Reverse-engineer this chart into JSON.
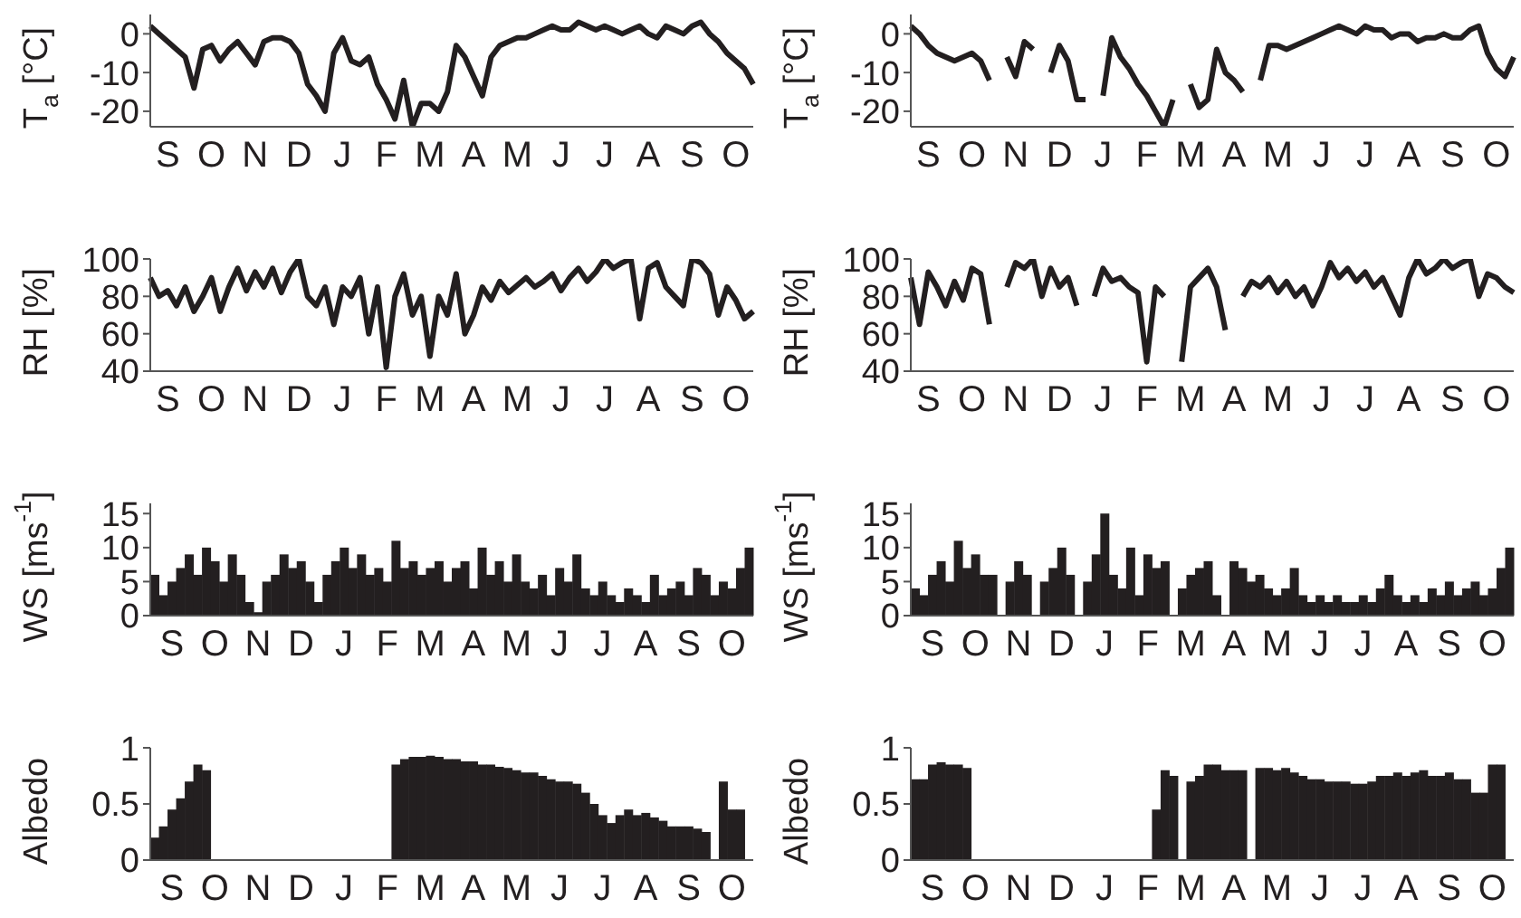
{
  "chart_data": [
    {
      "type": "line",
      "ylabel": "T$_{a}$ [°C]",
      "color": "#231f20",
      "ylim": [
        -24,
        5
      ],
      "yticks": [
        -20,
        -10,
        0
      ],
      "categories": [
        null,
        null,
        "S",
        null,
        null,
        null,
        null,
        "O",
        null,
        null,
        null,
        null,
        "N",
        null,
        null,
        null,
        null,
        "D",
        null,
        null,
        null,
        null,
        "J",
        null,
        null,
        null,
        null,
        "F",
        null,
        null,
        null,
        null,
        "M",
        null,
        null,
        null,
        null,
        "A",
        null,
        null,
        null,
        null,
        "M",
        null,
        null,
        null,
        null,
        "J",
        null,
        null,
        null,
        null,
        "J",
        null,
        null,
        null,
        null,
        "A",
        null,
        null,
        null,
        null,
        "S",
        null,
        null,
        null,
        null,
        "O",
        null,
        null
      ],
      "values": [
        2,
        0,
        -2,
        -4,
        -6,
        -14,
        -4,
        -3,
        -7,
        -4,
        -2,
        -5,
        -8,
        -2,
        -1,
        -1,
        -2,
        -5,
        -13,
        -16,
        -20,
        -5,
        -1,
        -7,
        -8,
        -6,
        -13,
        -17,
        -22,
        -12,
        -24,
        -18,
        -18,
        -20,
        -15,
        -3,
        -6,
        -11,
        -16,
        -6,
        -3,
        -2,
        -1,
        -1,
        0,
        1,
        2,
        1,
        1,
        3,
        2,
        1,
        2,
        1,
        0,
        1,
        2,
        0,
        -1,
        2,
        1,
        0,
        2,
        3,
        0,
        -2,
        -5,
        -7,
        -9,
        -13
      ]
    },
    {
      "type": "line",
      "ylabel": "T$_{a}$ [°C]",
      "color": "#231f20",
      "ylim": [
        -24,
        5
      ],
      "yticks": [
        -20,
        -10,
        0
      ],
      "categories": [
        null,
        null,
        "S",
        null,
        null,
        null,
        null,
        "O",
        null,
        null,
        null,
        null,
        "N",
        null,
        null,
        null,
        null,
        "D",
        null,
        null,
        null,
        null,
        "J",
        null,
        null,
        null,
        null,
        "F",
        null,
        null,
        null,
        null,
        "M",
        null,
        null,
        null,
        null,
        "A",
        null,
        null,
        null,
        null,
        "M",
        null,
        null,
        null,
        null,
        "J",
        null,
        null,
        null,
        null,
        "J",
        null,
        null,
        null,
        null,
        "A",
        null,
        null,
        null,
        null,
        "S",
        null,
        null,
        null,
        null,
        "O",
        null,
        null
      ],
      "values": [
        2,
        0,
        -3,
        -5,
        -6,
        -7,
        -6,
        -5,
        -7,
        -12,
        null,
        -6,
        -11,
        -2,
        -4,
        null,
        -10,
        -3,
        -7,
        -17,
        -17,
        null,
        -16,
        -1,
        -6,
        -9,
        -13,
        -16,
        -20,
        -24,
        -17,
        null,
        -13,
        -19,
        -17,
        -4,
        -10,
        -12,
        -15,
        null,
        -12,
        -3,
        -3,
        -4,
        -3,
        -2,
        -1,
        0,
        1,
        2,
        1,
        0,
        2,
        1,
        1,
        -1,
        0,
        0,
        -2,
        -1,
        -1,
        0,
        -1,
        -1,
        1,
        2,
        -5,
        -9,
        -11,
        -6
      ]
    },
    {
      "type": "line",
      "ylabel": "RH [%]",
      "color": "#231f20",
      "ylim": [
        40,
        100
      ],
      "yticks": [
        40,
        60,
        80,
        100
      ],
      "categories": [
        null,
        null,
        "S",
        null,
        null,
        null,
        null,
        "O",
        null,
        null,
        null,
        null,
        "N",
        null,
        null,
        null,
        null,
        "D",
        null,
        null,
        null,
        null,
        "J",
        null,
        null,
        null,
        null,
        "F",
        null,
        null,
        null,
        null,
        "M",
        null,
        null,
        null,
        null,
        "A",
        null,
        null,
        null,
        null,
        "M",
        null,
        null,
        null,
        null,
        "J",
        null,
        null,
        null,
        null,
        "J",
        null,
        null,
        null,
        null,
        "A",
        null,
        null,
        null,
        null,
        "S",
        null,
        null,
        null,
        null,
        "O",
        null,
        null
      ],
      "values": [
        90,
        80,
        83,
        75,
        85,
        72,
        80,
        90,
        72,
        85,
        95,
        83,
        93,
        85,
        95,
        82,
        93,
        100,
        80,
        75,
        85,
        65,
        85,
        80,
        90,
        60,
        85,
        42,
        80,
        92,
        70,
        80,
        48,
        80,
        70,
        92,
        60,
        70,
        85,
        78,
        88,
        82,
        86,
        90,
        85,
        88,
        92,
        83,
        90,
        95,
        88,
        93,
        100,
        95,
        98,
        100,
        68,
        95,
        98,
        85,
        80,
        75,
        100,
        98,
        92,
        70,
        85,
        78,
        68,
        72
      ]
    },
    {
      "type": "line",
      "ylabel": "RH [%]",
      "color": "#231f20",
      "ylim": [
        40,
        100
      ],
      "yticks": [
        40,
        60,
        80,
        100
      ],
      "categories": [
        null,
        null,
        "S",
        null,
        null,
        null,
        null,
        "O",
        null,
        null,
        null,
        null,
        "N",
        null,
        null,
        null,
        null,
        "D",
        null,
        null,
        null,
        null,
        "J",
        null,
        null,
        null,
        null,
        "F",
        null,
        null,
        null,
        null,
        "M",
        null,
        null,
        null,
        null,
        "A",
        null,
        null,
        null,
        null,
        "M",
        null,
        null,
        null,
        null,
        "J",
        null,
        null,
        null,
        null,
        "J",
        null,
        null,
        null,
        null,
        "A",
        null,
        null,
        null,
        null,
        "S",
        null,
        null,
        null,
        null,
        "O",
        null,
        null
      ],
      "values": [
        90,
        65,
        93,
        85,
        75,
        88,
        78,
        95,
        92,
        65,
        null,
        85,
        98,
        95,
        100,
        80,
        95,
        85,
        90,
        75,
        null,
        80,
        95,
        88,
        90,
        85,
        82,
        45,
        85,
        80,
        null,
        45,
        85,
        90,
        95,
        85,
        62,
        null,
        80,
        88,
        85,
        90,
        82,
        88,
        80,
        85,
        75,
        85,
        98,
        90,
        95,
        88,
        93,
        85,
        90,
        80,
        70,
        90,
        100,
        92,
        95,
        100,
        95,
        98,
        100,
        80,
        92,
        90,
        85,
        82
      ]
    },
    {
      "type": "bar",
      "ylabel": "WS [ms$^{-1}$]",
      "color": "#231f20",
      "ylim": [
        0,
        16.5
      ],
      "yticks": [
        0,
        5,
        10,
        15
      ],
      "categories": [
        null,
        null,
        "S",
        null,
        null,
        null,
        null,
        "O",
        null,
        null,
        null,
        null,
        "N",
        null,
        null,
        null,
        null,
        "D",
        null,
        null,
        null,
        null,
        "J",
        null,
        null,
        null,
        null,
        "F",
        null,
        null,
        null,
        null,
        "M",
        null,
        null,
        null,
        null,
        "A",
        null,
        null,
        null,
        null,
        "M",
        null,
        null,
        null,
        null,
        "J",
        null,
        null,
        null,
        null,
        "J",
        null,
        null,
        null,
        null,
        "A",
        null,
        null,
        null,
        null,
        "S",
        null,
        null,
        null,
        null,
        "O",
        null,
        null
      ],
      "values": [
        6,
        3,
        5,
        7,
        9,
        6,
        10,
        8,
        5,
        9,
        6,
        2,
        0.5,
        5,
        6,
        9,
        7,
        8,
        5,
        2,
        6,
        8,
        10,
        7,
        9,
        6,
        7,
        5,
        11,
        7,
        8,
        6,
        7,
        8,
        5,
        7,
        8,
        4,
        10,
        6,
        8,
        5,
        9,
        5,
        4,
        6,
        3,
        7,
        5,
        9,
        4,
        3,
        5,
        3,
        2,
        4,
        3,
        2,
        6,
        3,
        4,
        5,
        3,
        7,
        6,
        3,
        5,
        4,
        7,
        10
      ]
    },
    {
      "type": "bar",
      "ylabel": "WS [ms$^{-1}$]",
      "color": "#231f20",
      "ylim": [
        0,
        16.5
      ],
      "yticks": [
        0,
        5,
        10,
        15
      ],
      "categories": [
        null,
        null,
        "S",
        null,
        null,
        null,
        null,
        "O",
        null,
        null,
        null,
        null,
        "N",
        null,
        null,
        null,
        null,
        "D",
        null,
        null,
        null,
        null,
        "J",
        null,
        null,
        null,
        null,
        "F",
        null,
        null,
        null,
        null,
        "M",
        null,
        null,
        null,
        null,
        "A",
        null,
        null,
        null,
        null,
        "M",
        null,
        null,
        null,
        null,
        "J",
        null,
        null,
        null,
        null,
        "J",
        null,
        null,
        null,
        null,
        "A",
        null,
        null,
        null,
        null,
        "S",
        null,
        null,
        null,
        null,
        "O",
        null,
        null
      ],
      "values": [
        4,
        3,
        6,
        8,
        5,
        11,
        7,
        9,
        6,
        6,
        null,
        5,
        8,
        6,
        null,
        5,
        7,
        10,
        6,
        null,
        5,
        9,
        15,
        6,
        4,
        10,
        3,
        9,
        7,
        8,
        null,
        4,
        6,
        7,
        8,
        3,
        null,
        8,
        7,
        5,
        6,
        4,
        3,
        4,
        7,
        3,
        2,
        3,
        2,
        3,
        2,
        2,
        3,
        2,
        4,
        6,
        3,
        2,
        3,
        2,
        4,
        3,
        5,
        3,
        4,
        5,
        3,
        4,
        7,
        10
      ]
    },
    {
      "type": "bar",
      "ylabel": "Albedo",
      "color": "#231f20",
      "ylim": [
        0,
        1
      ],
      "yticks": [
        0,
        0.5,
        1
      ],
      "categories": [
        null,
        null,
        "S",
        null,
        null,
        null,
        null,
        "O",
        null,
        null,
        null,
        null,
        "N",
        null,
        null,
        null,
        null,
        "D",
        null,
        null,
        null,
        null,
        "J",
        null,
        null,
        null,
        null,
        "F",
        null,
        null,
        null,
        null,
        "M",
        null,
        null,
        null,
        null,
        "A",
        null,
        null,
        null,
        null,
        "M",
        null,
        null,
        null,
        null,
        "J",
        null,
        null,
        null,
        null,
        "J",
        null,
        null,
        null,
        null,
        "A",
        null,
        null,
        null,
        null,
        "S",
        null,
        null,
        null,
        null,
        "O",
        null,
        null
      ],
      "values": [
        0.2,
        0.3,
        0.45,
        0.55,
        0.7,
        0.85,
        0.8,
        null,
        null,
        null,
        null,
        null,
        null,
        null,
        null,
        null,
        null,
        null,
        null,
        null,
        null,
        null,
        null,
        null,
        null,
        null,
        null,
        null,
        0.85,
        0.9,
        0.92,
        0.92,
        0.93,
        0.92,
        0.9,
        0.9,
        0.88,
        0.88,
        0.85,
        0.85,
        0.83,
        0.82,
        0.8,
        0.78,
        0.78,
        0.75,
        0.72,
        0.7,
        0.7,
        0.68,
        0.6,
        0.5,
        0.4,
        0.33,
        0.4,
        0.45,
        0.4,
        0.42,
        0.38,
        0.35,
        0.3,
        0.3,
        0.3,
        0.28,
        0.25,
        null,
        0.7,
        0.45,
        0.45,
        null
      ]
    },
    {
      "type": "bar",
      "ylabel": "Albedo",
      "color": "#231f20",
      "ylim": [
        0,
        1
      ],
      "yticks": [
        0,
        0.5,
        1
      ],
      "categories": [
        null,
        null,
        "S",
        null,
        null,
        null,
        null,
        "O",
        null,
        null,
        null,
        null,
        "N",
        null,
        null,
        null,
        null,
        "D",
        null,
        null,
        null,
        null,
        "J",
        null,
        null,
        null,
        null,
        "F",
        null,
        null,
        null,
        null,
        "M",
        null,
        null,
        null,
        null,
        "A",
        null,
        null,
        null,
        null,
        "M",
        null,
        null,
        null,
        null,
        "J",
        null,
        null,
        null,
        null,
        "J",
        null,
        null,
        null,
        null,
        "A",
        null,
        null,
        null,
        null,
        "S",
        null,
        null,
        null,
        null,
        "O",
        null,
        null
      ],
      "values": [
        0.72,
        0.72,
        0.85,
        0.87,
        0.85,
        0.85,
        0.82,
        null,
        null,
        null,
        null,
        null,
        null,
        null,
        null,
        null,
        null,
        null,
        null,
        null,
        null,
        null,
        null,
        null,
        null,
        null,
        null,
        null,
        0.45,
        0.8,
        0.75,
        null,
        0.7,
        0.75,
        0.85,
        0.85,
        0.8,
        0.8,
        0.8,
        null,
        0.82,
        0.82,
        0.8,
        0.82,
        0.78,
        0.75,
        0.72,
        0.72,
        0.7,
        0.7,
        0.7,
        0.68,
        0.68,
        0.7,
        0.75,
        0.75,
        0.78,
        0.75,
        0.78,
        0.8,
        0.75,
        0.75,
        0.78,
        0.72,
        0.72,
        0.6,
        0.6,
        0.85,
        0.85,
        null
      ]
    }
  ]
}
